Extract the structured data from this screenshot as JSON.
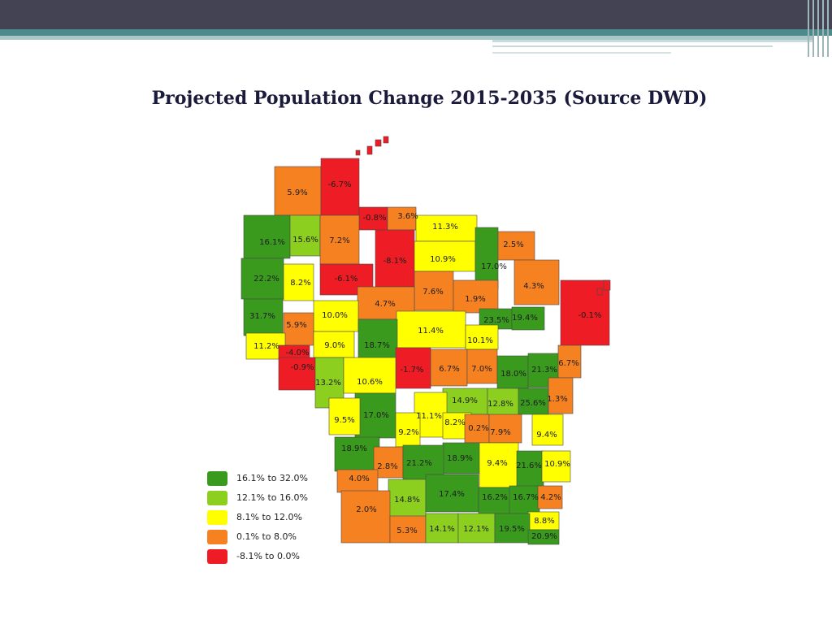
{
  "title": "Projected Population Change 2015-2035 (Source DWD)",
  "colors": {
    "dark_green": "#3a9a1e",
    "light_green": "#8ccf1f",
    "yellow": "#ffff00",
    "orange": "#f68121",
    "red": "#ee1c24"
  },
  "legend": [
    {
      "label": "16.1% to 32.0%",
      "color": "#3a9a1e"
    },
    {
      "label": "12.1% to 16.0%",
      "color": "#8ccf1f"
    },
    {
      "label": "8.1% to 12.0%",
      "color": "#ffff00"
    },
    {
      "label": "0.1% to 8.0%",
      "color": "#f68121"
    },
    {
      "label": "-8.1% to 0.0%",
      "color": "#ee1c24"
    }
  ],
  "county_labels": [
    "5.9%",
    "-6.7%",
    "-0.8%",
    "3.6%",
    "11.3%",
    "16.1%",
    "15.6%",
    "7.2%",
    "2.5%",
    "-8.1%",
    "10.9%",
    "17.0%",
    "22.2%",
    "8.2%",
    "-6.1%",
    "4.3%",
    "7.6%",
    "1.9%",
    "4.7%",
    "31.7%",
    "10.0%",
    "23.5%",
    "19.4%",
    "-0.1%",
    "5.9%",
    "11.4%",
    "10.1%",
    "11.2%",
    "9.0%",
    "18.7%",
    "-4.0%",
    "-0.9%",
    "-1.7%",
    "6.7%",
    "7.0%",
    "18.0%",
    "21.3%",
    "6.7%",
    "13.2%",
    "10.6%",
    "14.9%",
    "12.8%",
    "25.6%",
    "1.3%",
    "17.0%",
    "11.1%",
    "9.5%",
    "8.2%",
    "0.2%",
    "7.9%",
    "9.2%",
    "9.4%",
    "18.9%",
    "18.9%",
    "9.4%",
    "21.6%",
    "10.9%",
    "2.8%",
    "21.2%",
    "4.0%",
    "14.8%",
    "17.4%",
    "16.2%",
    "16.7%",
    "4.2%",
    "2.0%",
    "8.8%",
    "5.3%",
    "14.1%",
    "12.1%",
    "19.5%",
    "20.9%"
  ]
}
